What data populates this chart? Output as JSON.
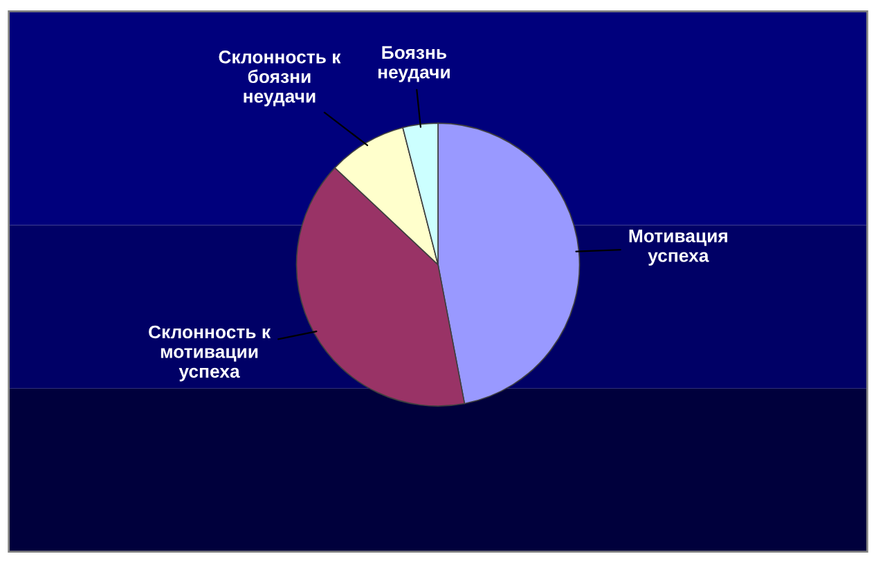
{
  "chart_data": {
    "type": "pie",
    "categories": [
      "Мотивация\nуспеха",
      "Склонность к\nмотивации\nуспеха",
      "Склонность к\nбоязни\nнеудачи",
      "Боязнь\nнеудачи"
    ],
    "values": [
      47,
      40,
      9,
      4
    ],
    "colors": [
      "#9999ff",
      "#993366",
      "#ffffcc",
      "#ccffff"
    ],
    "legend": false
  }
}
